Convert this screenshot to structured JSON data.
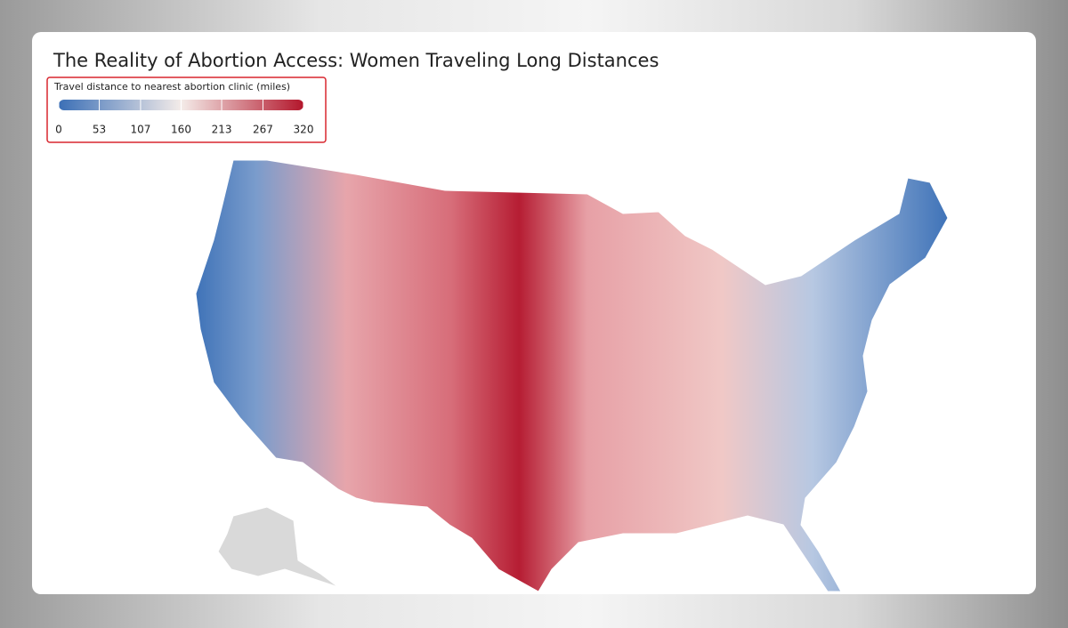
{
  "title": "The Reality of Abortion Access: Women Traveling Long Distances",
  "legend": {
    "title": "Travel distance to nearest abortion clinic (miles)",
    "ticks": [
      0,
      53,
      107,
      160,
      213,
      267,
      320
    ],
    "colors": [
      "#3b6fb6",
      "#f4ece9",
      "#b3162b"
    ]
  }
}
